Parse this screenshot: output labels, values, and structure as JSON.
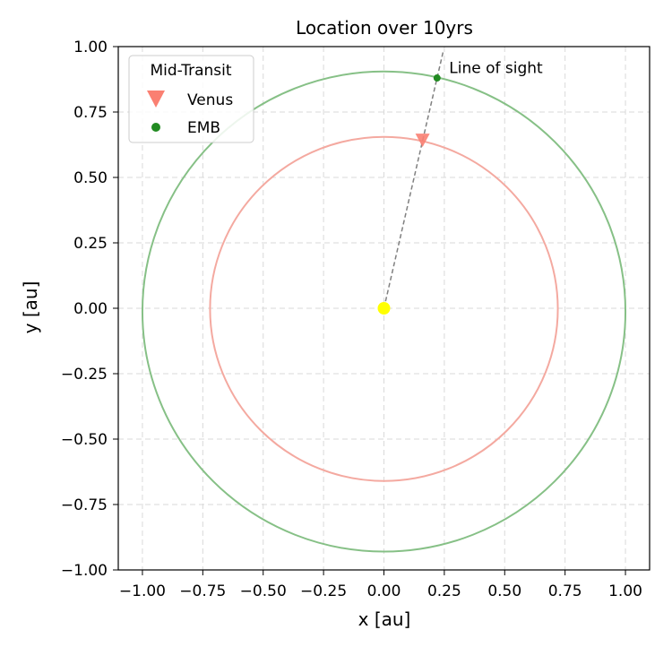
{
  "chart_data": {
    "type": "scatter",
    "title": "Location over 10yrs",
    "xlabel": "x [au]",
    "ylabel": "y [au]",
    "xlim": [
      -1.1,
      1.1
    ],
    "ylim": [
      -1.0,
      1.0
    ],
    "xticks": [
      -1.0,
      -0.75,
      -0.5,
      -0.25,
      0.0,
      0.25,
      0.5,
      0.75,
      1.0
    ],
    "yticks": [
      -1.0,
      -0.75,
      -0.5,
      -0.25,
      0.0,
      0.25,
      0.5,
      0.75,
      1.0
    ],
    "xtick_labels": [
      "−1.00",
      "−0.75",
      "−0.50",
      "−0.25",
      "0.00",
      "0.25",
      "0.50",
      "0.75",
      "1.00"
    ],
    "ytick_labels": [
      "−1.00",
      "−0.75",
      "−0.50",
      "−0.25",
      "0.00",
      "0.25",
      "0.50",
      "0.75",
      "1.00"
    ],
    "grid": true,
    "legend": {
      "title": "Mid-Transit",
      "placement": "top-left",
      "entries": [
        {
          "label": "Venus",
          "marker": "triangle-down",
          "color": "#fa8072"
        },
        {
          "label": "EMB",
          "marker": "circle",
          "color": "#228b22"
        }
      ]
    },
    "orbits": [
      {
        "body": "Venus",
        "color": "#f4a9a0",
        "cx": 0.0,
        "rx": 0.72,
        "ry_top": 0.655,
        "ry_bottom": 0.66
      },
      {
        "body": "EMB",
        "color": "#86c086",
        "cx": 0.0,
        "rx": 1.0,
        "ry_top": 0.905,
        "ry_bottom": 0.93
      }
    ],
    "points": [
      {
        "body": "Sun",
        "x": 0.0,
        "y": 0.0,
        "color": "#ffff00"
      },
      {
        "body": "Venus",
        "x": 0.16,
        "y": 0.64,
        "color": "#fa8072"
      },
      {
        "body": "EMB",
        "x": 0.22,
        "y": 0.88,
        "color": "#228b22"
      }
    ],
    "sight_line": {
      "from": [
        0.0,
        0.0
      ],
      "to": [
        0.245,
        0.98
      ],
      "color": "#808080"
    },
    "annotation": {
      "text": "Line of sight",
      "x": 0.27,
      "y": 0.92
    }
  }
}
